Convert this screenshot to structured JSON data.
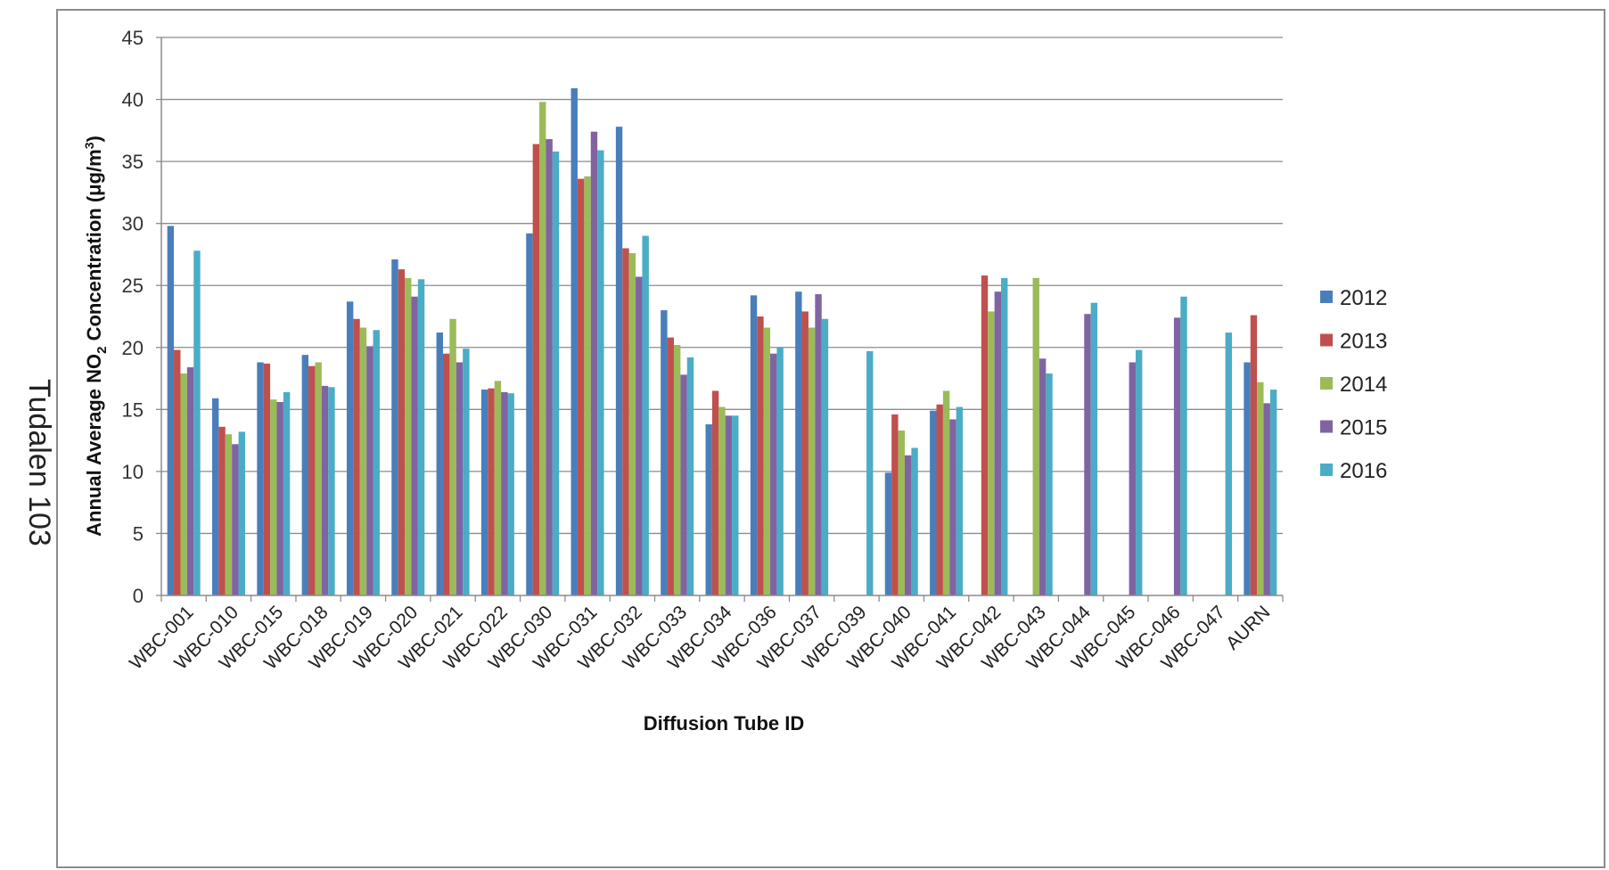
{
  "side_caption": "Tudalen 103",
  "chart_data": {
    "type": "bar",
    "title": "",
    "xlabel": "Diffusion Tube ID",
    "ylabel_main": "Annual Average NO",
    "ylabel_sub": "2",
    "ylabel_rest": " Concentration (μg/m",
    "ylabel_sup": "3",
    "ylabel_close": ")",
    "ylim": [
      0,
      45
    ],
    "yticks": [
      0,
      5,
      10,
      15,
      20,
      25,
      30,
      35,
      40,
      45
    ],
    "grid": true,
    "legend_position": "right",
    "categories": [
      "WBC-001",
      "WBC-010",
      "WBC-015",
      "WBC-018",
      "WBC-019",
      "WBC-020",
      "WBC-021",
      "WBC-022",
      "WBC-030",
      "WBC-031",
      "WBC-032",
      "WBC-033",
      "WBC-034",
      "WBC-036",
      "WBC-037",
      "WBC-039",
      "WBC-040",
      "WBC-041",
      "WBC-042",
      "WBC-043",
      "WBC-044",
      "WBC-045",
      "WBC-046",
      "WBC-047",
      "AURN"
    ],
    "series": [
      {
        "name": "2012",
        "color": "#4a7ebb",
        "values": [
          29.8,
          15.9,
          18.8,
          19.4,
          23.7,
          27.1,
          21.2,
          16.6,
          29.2,
          40.9,
          37.8,
          23.0,
          13.8,
          24.2,
          24.5,
          null,
          9.9,
          14.9,
          null,
          null,
          null,
          null,
          null,
          null,
          18.8
        ]
      },
      {
        "name": "2013",
        "color": "#c0504d",
        "values": [
          19.8,
          13.6,
          18.7,
          18.5,
          22.3,
          26.3,
          19.5,
          16.7,
          36.4,
          33.6,
          28.0,
          20.8,
          16.5,
          22.5,
          22.9,
          null,
          14.6,
          15.4,
          25.8,
          null,
          null,
          null,
          null,
          null,
          22.6
        ]
      },
      {
        "name": "2014",
        "color": "#9bbb59",
        "values": [
          17.9,
          13.0,
          15.8,
          18.8,
          21.6,
          25.6,
          22.3,
          17.3,
          39.8,
          33.8,
          27.6,
          20.2,
          15.2,
          21.6,
          21.6,
          null,
          13.3,
          16.5,
          22.9,
          25.6,
          null,
          null,
          null,
          null,
          17.2
        ]
      },
      {
        "name": "2015",
        "color": "#8064a2",
        "values": [
          18.4,
          12.2,
          15.6,
          16.9,
          20.1,
          24.1,
          18.8,
          16.4,
          36.8,
          37.4,
          25.7,
          17.8,
          14.5,
          19.5,
          24.3,
          null,
          11.3,
          14.2,
          24.5,
          19.1,
          22.7,
          18.8,
          22.4,
          null,
          15.5
        ]
      },
      {
        "name": "2016",
        "color": "#4bacc6",
        "values": [
          27.8,
          13.2,
          16.4,
          16.8,
          21.4,
          25.5,
          19.9,
          16.3,
          35.8,
          35.9,
          29.0,
          19.2,
          14.5,
          20.0,
          22.3,
          19.7,
          11.9,
          15.2,
          25.6,
          17.9,
          23.6,
          19.8,
          24.1,
          21.2,
          16.6
        ]
      }
    ]
  }
}
